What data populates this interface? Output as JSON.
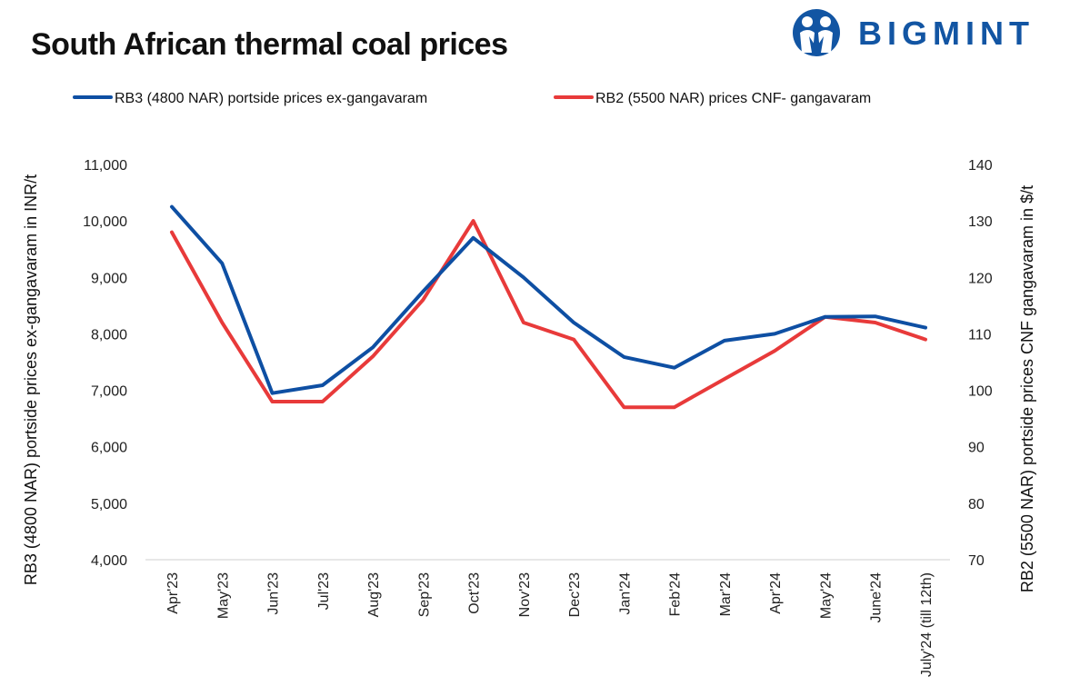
{
  "title": "South African thermal coal prices",
  "brand": {
    "name": "BIGMINT",
    "color": "#1255a3"
  },
  "chart_data": {
    "type": "line",
    "title": "South African thermal coal prices",
    "categories": [
      "Apr'23",
      "May'23",
      "Jun'23",
      "Jul'23",
      "Aug'23",
      "Sep'23",
      "Oct'23",
      "Nov'23",
      "Dec'23",
      "Jan'24",
      "Feb'24",
      "Mar'24",
      "Apr'24",
      "May'24",
      "June'24",
      "July'24 (till 12th)"
    ],
    "y_left": {
      "label": "RB3 (4800 NAR) portside prices ex-gangavaram in INR/t",
      "min": 4000,
      "max": 11000,
      "ticks": [
        "4,000",
        "5,000",
        "6,000",
        "7,000",
        "8,000",
        "9,000",
        "10,000",
        "11,000"
      ]
    },
    "y_right": {
      "label": "RB2 (5500 NAR) portside prices CNF  gangavaram in $/t",
      "min": 70,
      "max": 140,
      "ticks": [
        "70",
        "80",
        "90",
        "100",
        "110",
        "120",
        "130",
        "140"
      ]
    },
    "series": [
      {
        "name": "RB3 (4800 NAR) portside prices ex-gangavaram",
        "axis": "left",
        "color": "#0e4fa3",
        "values": [
          10250,
          9250,
          6950,
          7090,
          7760,
          8750,
          9700,
          9000,
          8200,
          7590,
          7400,
          7880,
          8000,
          8300,
          8310,
          8110
        ]
      },
      {
        "name": "RB2 (5500 NAR) prices CNF- gangavaram",
        "axis": "right",
        "color": "#e83a3a",
        "values": [
          128,
          112,
          98,
          98,
          106,
          116,
          130,
          112,
          109,
          97,
          97,
          102,
          107,
          113,
          112,
          109
        ]
      }
    ],
    "grid": false,
    "legend_position": "top"
  }
}
